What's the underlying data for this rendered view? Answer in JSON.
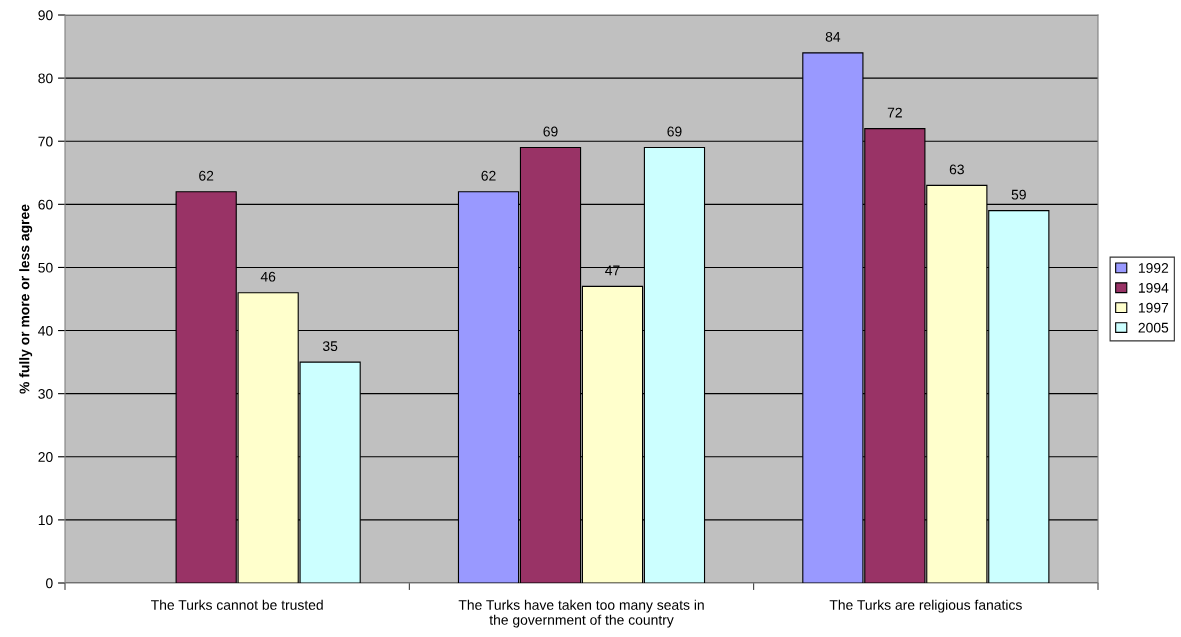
{
  "chart_data": {
    "type": "bar",
    "ylabel": "% fully or more or less agree",
    "categories": [
      "The Turks cannot be trusted",
      "The Turks have taken too many seats in\nthe government of the country",
      "The Turks are religious fanatics"
    ],
    "series": [
      {
        "name": "1992",
        "color": "#9999ff",
        "values": [
          null,
          62,
          84
        ]
      },
      {
        "name": "1994",
        "color": "#993366",
        "values": [
          62,
          69,
          72
        ]
      },
      {
        "name": "1997",
        "color": "#ffffcc",
        "values": [
          46,
          47,
          63
        ]
      },
      {
        "name": "2005",
        "color": "#ccffff",
        "values": [
          35,
          69,
          59
        ]
      }
    ],
    "ylim": [
      0,
      90
    ],
    "yticks": [
      0,
      10,
      20,
      30,
      40,
      50,
      60,
      70,
      80,
      90
    ],
    "grid": "y",
    "legend": "right",
    "data_labels": true
  }
}
